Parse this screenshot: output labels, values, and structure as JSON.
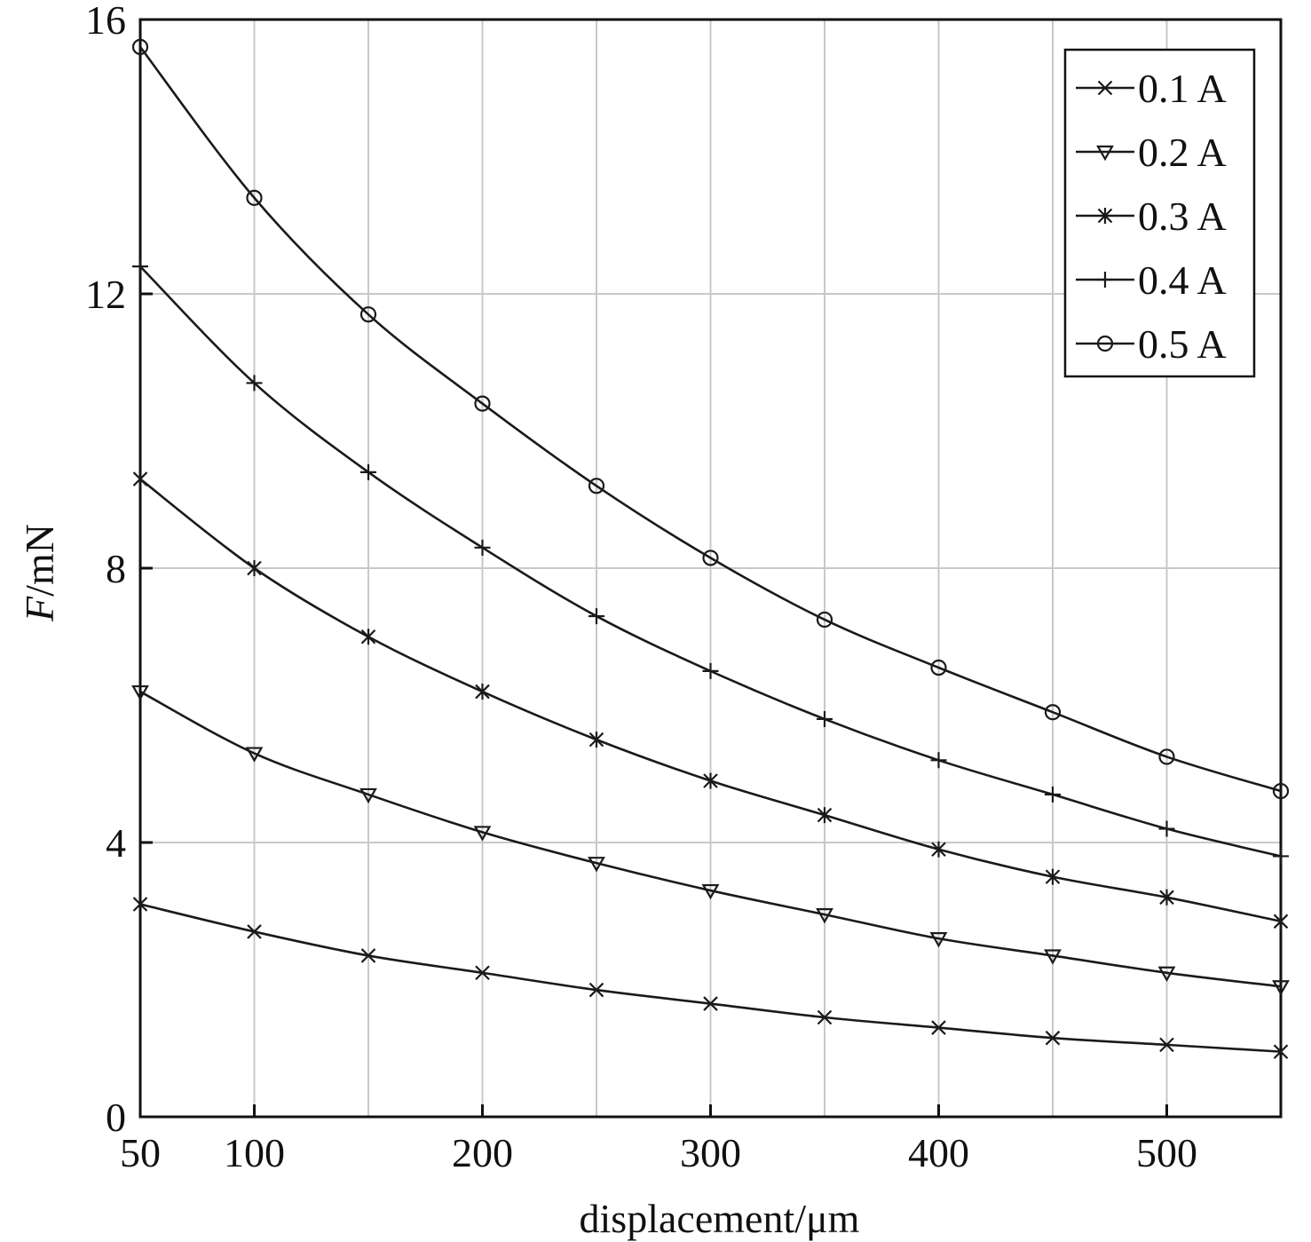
{
  "chart_data": {
    "type": "line",
    "title": "",
    "xlabel": "displacement/μm",
    "ylabel_italic": "F",
    "ylabel_rest": "/mN",
    "xlim": [
      50,
      550
    ],
    "ylim": [
      0,
      16
    ],
    "x_ticks": [
      50,
      100,
      200,
      300,
      400,
      500
    ],
    "y_ticks": [
      0,
      4,
      8,
      12,
      16
    ],
    "grid": true,
    "legend_position": "top-right",
    "x": [
      50,
      100,
      150,
      200,
      250,
      300,
      350,
      400,
      450,
      500,
      550
    ],
    "series": [
      {
        "name": "0.1 A",
        "marker": "x",
        "values": [
          3.1,
          2.7,
          2.35,
          2.1,
          1.85,
          1.65,
          1.45,
          1.3,
          1.15,
          1.05,
          0.95
        ]
      },
      {
        "name": "0.2 A",
        "marker": "triangle-down",
        "values": [
          6.2,
          5.3,
          4.7,
          4.15,
          3.7,
          3.3,
          2.95,
          2.6,
          2.35,
          2.1,
          1.9
        ]
      },
      {
        "name": "0.3 A",
        "marker": "asterisk",
        "values": [
          9.3,
          8.0,
          7.0,
          6.2,
          5.5,
          4.9,
          4.4,
          3.9,
          3.5,
          3.2,
          2.85
        ]
      },
      {
        "name": "0.4 A",
        "marker": "plus",
        "values": [
          12.4,
          10.7,
          9.4,
          8.3,
          7.3,
          6.5,
          5.8,
          5.2,
          4.7,
          4.2,
          3.8
        ]
      },
      {
        "name": "0.5 A",
        "marker": "circle",
        "values": [
          15.6,
          13.4,
          11.7,
          10.4,
          9.2,
          8.15,
          7.25,
          6.55,
          5.9,
          5.25,
          4.75
        ]
      }
    ]
  }
}
